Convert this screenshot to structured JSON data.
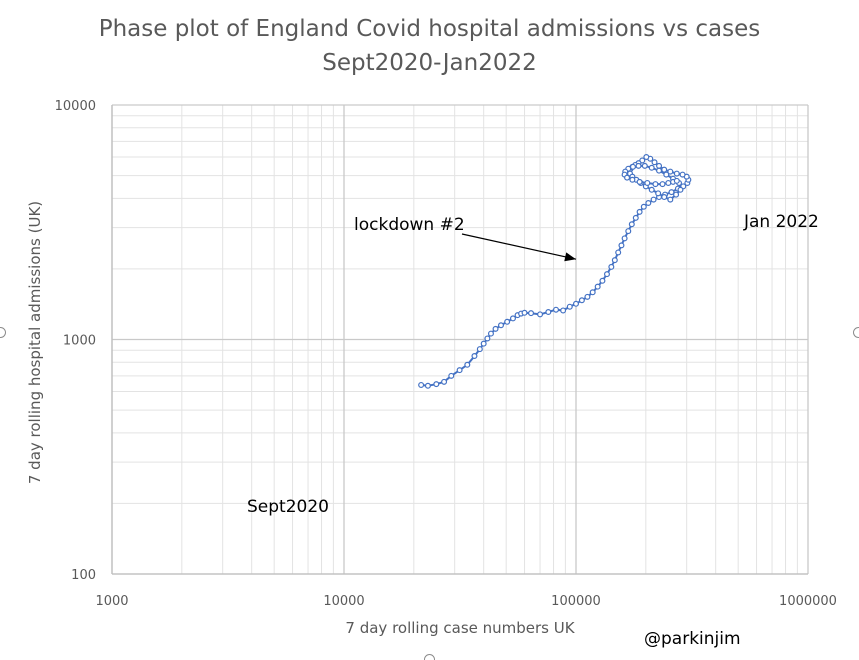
{
  "title_line1": "Phase plot of England Covid hospital admissions vs cases",
  "title_line2": "Sept2020-Jan2022",
  "credit": "@parkinjim",
  "chart_data": {
    "type": "scatter",
    "title": "Phase plot of England Covid hospital admissions vs cases Sept2020-Jan2022",
    "xlabel": "7 day rolling case numbers UK",
    "ylabel": "7 day rolling hospital admissions (UK)",
    "xscale": "log",
    "yscale": "log",
    "xlim": [
      1000,
      1000000
    ],
    "ylim": [
      100,
      10000
    ],
    "xticks": [
      "1000",
      "10000",
      "100000",
      "1000000"
    ],
    "yticks": [
      "100",
      "1000",
      "10000"
    ],
    "grid": true,
    "series_color": "#4472c4",
    "series": [
      {
        "name": "England Covid",
        "x": [
          21500,
          23000,
          25000,
          27000,
          29000,
          31500,
          34000,
          36500,
          38500,
          40000,
          41500,
          43000,
          45000,
          47500,
          50500,
          53500,
          56000,
          58000,
          60000,
          64000,
          70000,
          76000,
          82000,
          88000,
          94000,
          100000,
          106000,
          112000,
          118000,
          124000,
          130000,
          136000,
          142000,
          147000,
          152000,
          157000,
          162000,
          168000,
          174000,
          181000,
          188000,
          196000,
          205000,
          216000,
          228000,
          242000,
          258000,
          275000,
          290000,
          302000,
          305000,
          300000,
          288000,
          272000,
          255000,
          240000,
          228000,
          218000,
          209000,
          201000,
          193000,
          186000,
          180000,
          175000,
          172000,
          170000,
          171000,
          175000,
          182000,
          190000,
          200000,
          212000,
          226000,
          240000,
          255000,
          270000,
          282000,
          278000,
          262000,
          245000,
          228000,
          212000,
          198000,
          186000,
          176000,
          168000,
          163000,
          162000,
          166000,
          175000,
          188000,
          203000,
          220000,
          236000,
          250000,
          262000,
          272000
        ],
        "y": [
          640,
          635,
          645,
          660,
          700,
          740,
          780,
          850,
          910,
          960,
          1010,
          1060,
          1110,
          1150,
          1190,
          1230,
          1270,
          1290,
          1300,
          1295,
          1280,
          1310,
          1340,
          1330,
          1380,
          1420,
          1470,
          1520,
          1590,
          1680,
          1780,
          1900,
          2040,
          2180,
          2350,
          2520,
          2700,
          2900,
          3100,
          3300,
          3500,
          3680,
          3820,
          3950,
          4050,
          4150,
          4250,
          4400,
          4500,
          4650,
          4800,
          4950,
          5050,
          5100,
          5200,
          5300,
          5500,
          5700,
          5900,
          6000,
          5800,
          5650,
          5550,
          5450,
          5350,
          5250,
          5100,
          4950,
          4800,
          4650,
          4500,
          4350,
          4200,
          4050,
          3950,
          4150,
          4350,
          4650,
          4850,
          5050,
          5250,
          5400,
          5500,
          5500,
          5450,
          5350,
          5200,
          5050,
          4900,
          4800,
          4700,
          4650,
          4600,
          4600,
          4650,
          4700,
          4750
        ]
      }
    ],
    "annotations": [
      {
        "text": "lockdown #2",
        "arrow_to_x": 100000,
        "arrow_to_y": 2200
      },
      {
        "text": "Jan 2022"
      },
      {
        "text": "Sept2020"
      }
    ]
  }
}
